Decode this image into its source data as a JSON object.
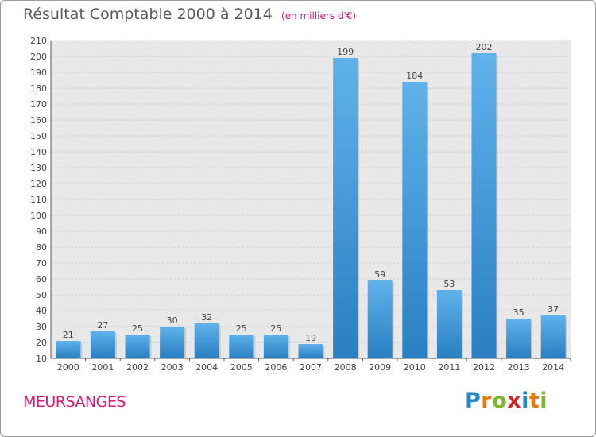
{
  "header": {
    "title": "Résultat Comptable 2000 à 2014",
    "subtitle": "(en milliers d'€)"
  },
  "footer": {
    "commune": "MEURSANGES",
    "logo_letters": [
      "P",
      "r",
      "o",
      "x",
      "i",
      "t",
      "i"
    ],
    "logo_colors": [
      "#2a86c8",
      "#e27a0e",
      "#7ab827",
      "#d4282a",
      "#2a86c8",
      "#e27a0e",
      "#7ab827"
    ]
  },
  "chart_data": {
    "type": "bar",
    "categories": [
      "2000",
      "2001",
      "2002",
      "2003",
      "2004",
      "2005",
      "2006",
      "2007",
      "2008",
      "2009",
      "2010",
      "2011",
      "2012",
      "2013",
      "2014"
    ],
    "values": [
      21,
      27,
      25,
      30,
      32,
      25,
      25,
      19,
      199,
      59,
      184,
      53,
      202,
      35,
      37
    ],
    "yticks": [
      10,
      20,
      30,
      40,
      50,
      60,
      70,
      80,
      90,
      100,
      110,
      120,
      130,
      140,
      150,
      160,
      170,
      180,
      190,
      200,
      210
    ],
    "ylim": [
      10,
      210
    ],
    "title": "Résultat Comptable 2000 à 2014",
    "xlabel": "",
    "ylabel": "",
    "grid": true,
    "bar_color": "#3d97d8",
    "grid_color": "#cfcfcf",
    "plot_bg": "#e8e8e8"
  }
}
